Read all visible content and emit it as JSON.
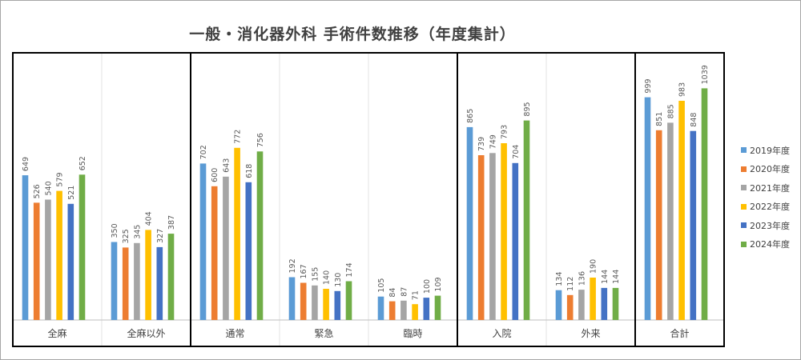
{
  "chart_data": {
    "type": "bar",
    "title": "一般・消化器外科 手術件数推移（年度集計）",
    "categories": [
      "全麻",
      "全麻以外",
      "通常",
      "緊急",
      "臨時",
      "入院",
      "外来",
      "合計"
    ],
    "series": [
      {
        "name": "2019年度",
        "color": "#5b9bd5",
        "values": [
          649,
          350,
          702,
          192,
          105,
          865,
          134,
          999
        ]
      },
      {
        "name": "2020年度",
        "color": "#ed7d31",
        "values": [
          526,
          325,
          600,
          167,
          84,
          739,
          112,
          851
        ]
      },
      {
        "name": "2021年度",
        "color": "#a5a5a5",
        "values": [
          540,
          345,
          643,
          155,
          87,
          749,
          136,
          885
        ]
      },
      {
        "name": "2022年度",
        "color": "#ffc000",
        "values": [
          579,
          404,
          772,
          140,
          71,
          793,
          190,
          983
        ]
      },
      {
        "name": "2023年度",
        "color": "#4472c4",
        "values": [
          521,
          327,
          618,
          130,
          100,
          704,
          144,
          848
        ]
      },
      {
        "name": "2024年度",
        "color": "#70ad47",
        "values": [
          652,
          387,
          756,
          174,
          109,
          895,
          144,
          1039
        ]
      }
    ],
    "ylim": [
      0,
      1200
    ],
    "grid": false,
    "legend": "right",
    "data_labels": true
  }
}
